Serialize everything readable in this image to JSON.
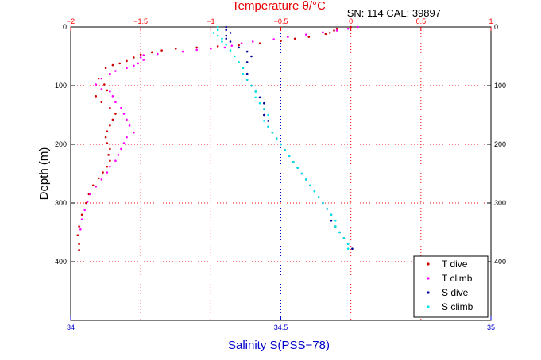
{
  "chart_data": {
    "type": "scatter",
    "title_top": "Temperature θ/°C",
    "annotation": "SN: 114  CAL: 39897",
    "xlabel_bottom": "Salinity S(PSS−78)",
    "ylabel": "Depth (m)",
    "ylim": [
      0,
      500
    ],
    "yticks": [
      0,
      100,
      200,
      300,
      400
    ],
    "ytick_labels": [
      "0",
      "100",
      "200",
      "300",
      "400"
    ],
    "temperature_axis": {
      "range": [
        -2,
        1
      ],
      "ticks": [
        -2,
        -1.5,
        -1,
        -0.5,
        0,
        0.5,
        1
      ],
      "tick_labels": [
        "−2",
        "−1.5",
        "−1",
        "−0.5",
        "0",
        "0.5",
        "1"
      ]
    },
    "salinity_axis": {
      "range": [
        34,
        35
      ],
      "ticks": [
        34,
        34.5,
        35
      ],
      "tick_labels": [
        "34",
        "34.5",
        "35"
      ]
    },
    "grid": true,
    "legend_position": "bottom-right",
    "series": [
      {
        "name": "T dive",
        "axis": "temperature",
        "color": "#cc0000",
        "points": [
          [
            0.0,
            0
          ],
          [
            -0.1,
            3
          ],
          [
            -0.12,
            6
          ],
          [
            -0.15,
            10
          ],
          [
            -0.18,
            12
          ],
          [
            -0.3,
            17
          ],
          [
            -0.4,
            20
          ],
          [
            -0.5,
            24
          ],
          [
            -0.65,
            28
          ],
          [
            -0.8,
            31
          ],
          [
            -0.95,
            33
          ],
          [
            -1.1,
            35
          ],
          [
            -1.25,
            37
          ],
          [
            -1.35,
            40
          ],
          [
            -1.42,
            43
          ],
          [
            -1.5,
            47
          ],
          [
            -1.55,
            52
          ],
          [
            -1.6,
            58
          ],
          [
            -1.65,
            62
          ],
          [
            -1.7,
            65
          ],
          [
            -1.75,
            70
          ],
          [
            -1.72,
            80
          ],
          [
            -1.8,
            88
          ],
          [
            -1.76,
            98
          ],
          [
            -1.74,
            108
          ],
          [
            -1.82,
            118
          ],
          [
            -1.78,
            128
          ],
          [
            -1.72,
            138
          ],
          [
            -1.68,
            148
          ],
          [
            -1.7,
            158
          ],
          [
            -1.72,
            168
          ],
          [
            -1.74,
            178
          ],
          [
            -1.75,
            188
          ],
          [
            -1.74,
            198
          ],
          [
            -1.72,
            208
          ],
          [
            -1.73,
            218
          ],
          [
            -1.72,
            228
          ],
          [
            -1.74,
            238
          ],
          [
            -1.77,
            248
          ],
          [
            -1.8,
            258
          ],
          [
            -1.84,
            270
          ],
          [
            -1.87,
            285
          ],
          [
            -1.89,
            300
          ],
          [
            -1.92,
            320
          ],
          [
            -1.94,
            340
          ],
          [
            -1.95,
            355
          ],
          [
            -1.94,
            370
          ],
          [
            -1.94,
            380
          ]
        ]
      },
      {
        "name": "T climb",
        "axis": "temperature",
        "color": "#ff00ff",
        "points": [
          [
            0.05,
            0
          ],
          [
            -0.02,
            3
          ],
          [
            -0.1,
            6
          ],
          [
            -0.2,
            9
          ],
          [
            -0.32,
            13
          ],
          [
            -0.45,
            17
          ],
          [
            -0.55,
            21
          ],
          [
            -0.7,
            25
          ],
          [
            -0.78,
            28
          ],
          [
            -0.85,
            32
          ],
          [
            -0.9,
            35
          ],
          [
            -1.0,
            37
          ],
          [
            -1.1,
            39
          ],
          [
            -1.2,
            42
          ],
          [
            -1.38,
            46
          ],
          [
            -1.48,
            48
          ],
          [
            -1.5,
            52
          ],
          [
            -1.48,
            56
          ],
          [
            -1.52,
            62
          ],
          [
            -1.55,
            66
          ],
          [
            -1.6,
            70
          ],
          [
            -1.68,
            75
          ],
          [
            -1.72,
            80
          ],
          [
            -1.78,
            88
          ],
          [
            -1.82,
            98
          ],
          [
            -1.78,
            106
          ],
          [
            -1.72,
            110
          ],
          [
            -1.7,
            118
          ],
          [
            -1.68,
            128
          ],
          [
            -1.64,
            138
          ],
          [
            -1.62,
            148
          ],
          [
            -1.6,
            158
          ],
          [
            -1.58,
            168
          ],
          [
            -1.55,
            180
          ],
          [
            -1.6,
            188
          ],
          [
            -1.62,
            198
          ],
          [
            -1.64,
            208
          ],
          [
            -1.66,
            218
          ],
          [
            -1.68,
            228
          ],
          [
            -1.72,
            238
          ],
          [
            -1.74,
            248
          ],
          [
            -1.78,
            260
          ],
          [
            -1.82,
            272
          ],
          [
            -1.86,
            285
          ],
          [
            -1.88,
            298
          ],
          [
            -1.9,
            312
          ],
          [
            -1.92,
            328
          ],
          [
            -1.93,
            345
          ]
        ]
      },
      {
        "name": "S dive",
        "axis": "salinity",
        "color": "#000099",
        "points": [
          [
            34.37,
            0
          ],
          [
            34.37,
            5
          ],
          [
            34.38,
            10
          ],
          [
            34.37,
            15
          ],
          [
            34.37,
            20
          ],
          [
            34.38,
            25
          ],
          [
            34.4,
            35
          ],
          [
            34.42,
            42
          ],
          [
            34.43,
            50
          ],
          [
            34.42,
            60
          ],
          [
            34.41,
            70
          ],
          [
            34.42,
            80
          ],
          [
            34.42,
            90
          ],
          [
            34.43,
            100
          ],
          [
            34.44,
            110
          ],
          [
            34.45,
            120
          ],
          [
            34.46,
            130
          ],
          [
            34.46,
            140
          ],
          [
            34.46,
            150
          ],
          [
            34.47,
            160
          ],
          [
            34.47,
            170
          ],
          [
            34.48,
            180
          ],
          [
            34.49,
            190
          ],
          [
            34.5,
            200
          ],
          [
            34.51,
            210
          ],
          [
            34.52,
            220
          ],
          [
            34.53,
            230
          ],
          [
            34.54,
            240
          ],
          [
            34.55,
            250
          ],
          [
            34.56,
            260
          ],
          [
            34.57,
            270
          ],
          [
            34.58,
            280
          ],
          [
            34.59,
            290
          ],
          [
            34.6,
            300
          ],
          [
            34.61,
            310
          ],
          [
            34.62,
            320
          ],
          [
            34.62,
            330
          ],
          [
            34.63,
            340
          ],
          [
            34.64,
            350
          ],
          [
            34.65,
            360
          ],
          [
            34.66,
            370
          ],
          [
            34.67,
            378
          ]
        ]
      },
      {
        "name": "S climb",
        "axis": "salinity",
        "color": "#00e5e5",
        "points": [
          [
            34.35,
            0
          ],
          [
            34.35,
            5
          ],
          [
            34.34,
            10
          ],
          [
            34.35,
            15
          ],
          [
            34.36,
            20
          ],
          [
            34.36,
            25
          ],
          [
            34.37,
            30
          ],
          [
            34.38,
            40
          ],
          [
            34.39,
            50
          ],
          [
            34.4,
            60
          ],
          [
            34.41,
            70
          ],
          [
            34.41,
            80
          ],
          [
            34.42,
            90
          ],
          [
            34.43,
            100
          ],
          [
            34.44,
            110
          ],
          [
            34.44,
            120
          ],
          [
            34.45,
            130
          ],
          [
            34.46,
            140
          ],
          [
            34.47,
            150
          ],
          [
            34.46,
            160
          ],
          [
            34.47,
            170
          ],
          [
            34.48,
            180
          ],
          [
            34.49,
            190
          ],
          [
            34.5,
            200
          ],
          [
            34.51,
            210
          ],
          [
            34.52,
            220
          ],
          [
            34.53,
            230
          ],
          [
            34.54,
            240
          ],
          [
            34.55,
            250
          ],
          [
            34.56,
            260
          ],
          [
            34.57,
            270
          ],
          [
            34.58,
            280
          ],
          [
            34.59,
            290
          ],
          [
            34.6,
            300
          ],
          [
            34.61,
            310
          ],
          [
            34.62,
            320
          ],
          [
            34.63,
            330
          ],
          [
            34.63,
            340
          ],
          [
            34.64,
            350
          ],
          [
            34.65,
            360
          ],
          [
            34.66,
            370
          ],
          [
            34.66,
            378
          ]
        ]
      }
    ]
  }
}
